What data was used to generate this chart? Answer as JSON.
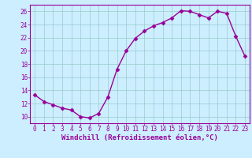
{
  "x": [
    0,
    1,
    2,
    3,
    4,
    5,
    6,
    7,
    8,
    9,
    10,
    11,
    12,
    13,
    14,
    15,
    16,
    17,
    18,
    19,
    20,
    21,
    22,
    23
  ],
  "y": [
    13.3,
    12.3,
    11.8,
    11.3,
    11.0,
    10.0,
    9.8,
    10.5,
    13.0,
    17.2,
    20.0,
    21.9,
    23.0,
    23.8,
    24.3,
    25.0,
    26.1,
    26.0,
    25.5,
    25.0,
    26.0,
    25.7,
    22.2,
    19.2
  ],
  "line_color": "#990099",
  "marker": "D",
  "markersize": 2.5,
  "background_color": "#cceeff",
  "grid_color": "#99cccc",
  "xlabel": "Windchill (Refroidissement éolien,°C)",
  "xlabel_fontsize": 6.5,
  "xtick_labels": [
    "0",
    "1",
    "2",
    "3",
    "4",
    "5",
    "6",
    "7",
    "8",
    "9",
    "10",
    "11",
    "12",
    "13",
    "14",
    "15",
    "16",
    "17",
    "18",
    "19",
    "20",
    "21",
    "22",
    "23"
  ],
  "ytick_values": [
    10,
    12,
    14,
    16,
    18,
    20,
    22,
    24,
    26
  ],
  "ylim": [
    9.0,
    27.0
  ],
  "xlim": [
    -0.5,
    23.5
  ],
  "tick_color": "#990099",
  "tick_fontsize": 5.5,
  "spine_color": "#990099",
  "linewidth": 1.0
}
